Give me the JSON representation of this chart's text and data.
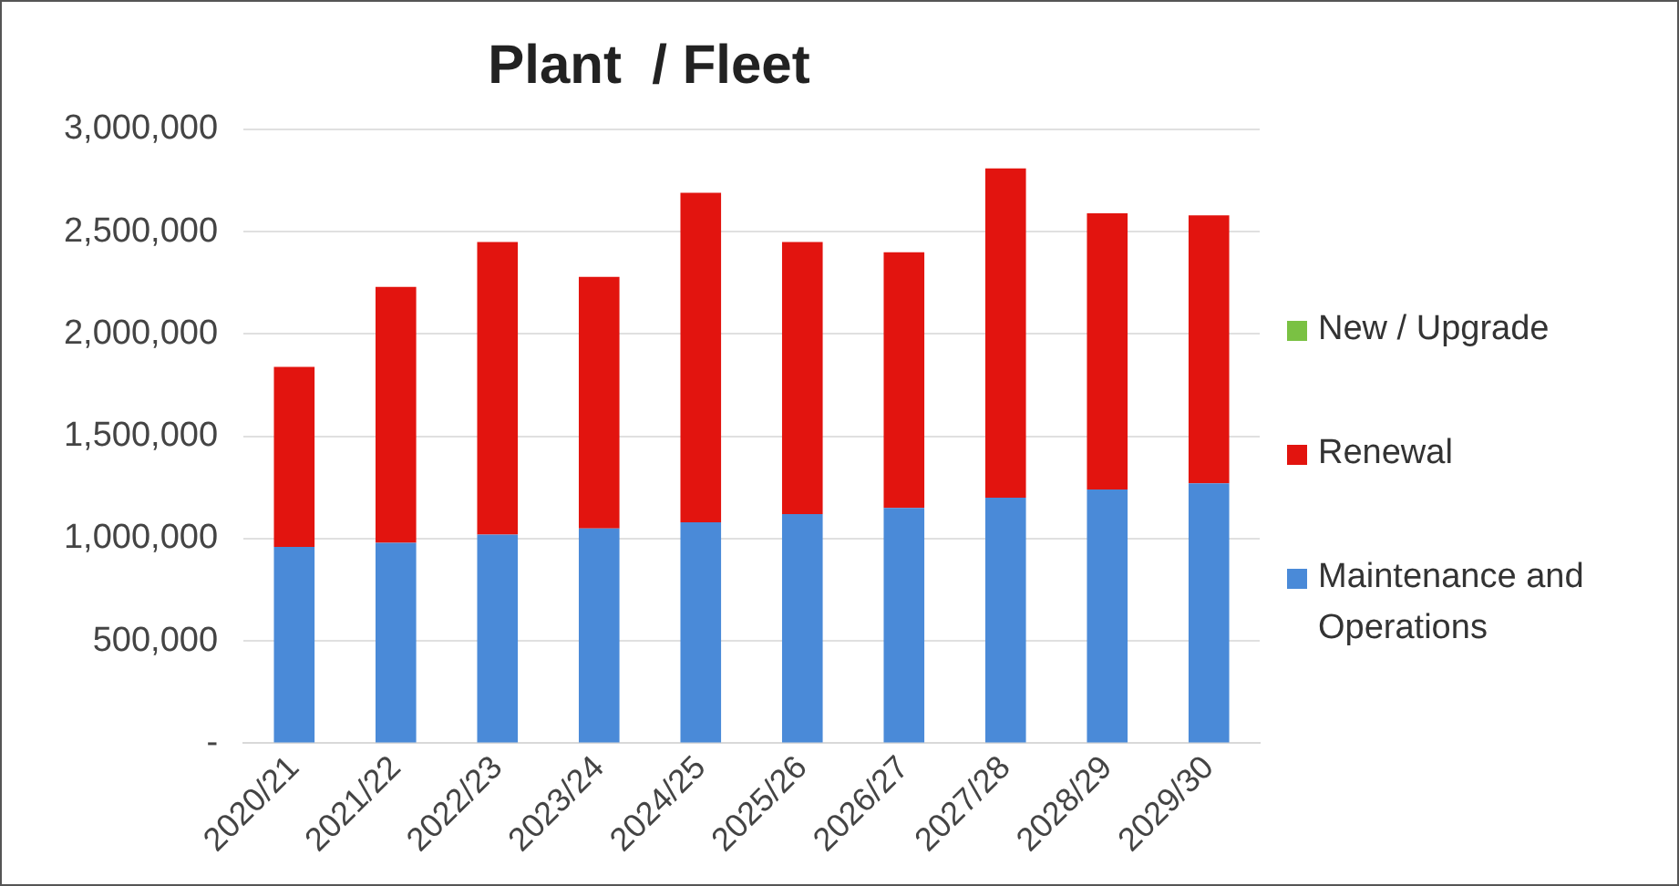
{
  "chart_data": {
    "type": "bar",
    "title": "Plant  / Fleet",
    "stacked": true,
    "categories": [
      "2020/21",
      "2021/22",
      "2022/23",
      "2023/24",
      "2024/25",
      "2025/26",
      "2026/27",
      "2027/28",
      "2028/29",
      "2029/30"
    ],
    "series": [
      {
        "name": "Maintenance and Operations",
        "color": "#4a8ad8",
        "values": [
          960000,
          980000,
          1020000,
          1050000,
          1080000,
          1120000,
          1150000,
          1200000,
          1240000,
          1270000
        ]
      },
      {
        "name": "Renewal",
        "color": "#e2140f",
        "values": [
          880000,
          1250000,
          1430000,
          1230000,
          1610000,
          1330000,
          1250000,
          1610000,
          1350000,
          1310000
        ]
      },
      {
        "name": "New / Upgrade",
        "color": "#7ac143",
        "values": [
          0,
          0,
          0,
          0,
          0,
          0,
          0,
          0,
          0,
          0
        ]
      }
    ],
    "ylim": [
      0,
      3000000
    ],
    "yticks": [
      {
        "value": 0,
        "label": "-"
      },
      {
        "value": 500000,
        "label": "500,000"
      },
      {
        "value": 1000000,
        "label": "1,000,000"
      },
      {
        "value": 1500000,
        "label": "1,500,000"
      },
      {
        "value": 2000000,
        "label": "2,000,000"
      },
      {
        "value": 2500000,
        "label": "2,500,000"
      },
      {
        "value": 3000000,
        "label": "3,000,000"
      }
    ],
    "grid": "y",
    "legend": "right"
  }
}
